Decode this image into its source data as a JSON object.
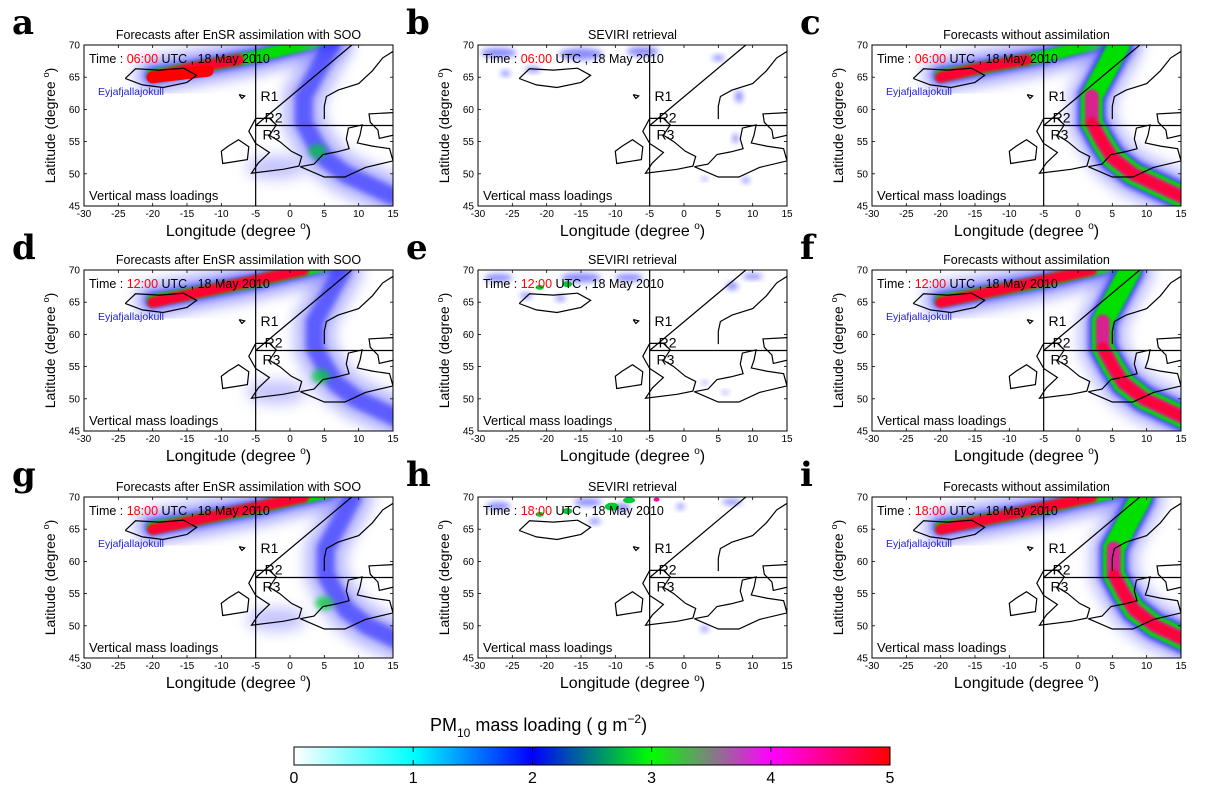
{
  "labels": {
    "x_axis": "Longitude (degree ",
    "y_axis": "Latitude (degree ",
    "degree_symbol": "o",
    "closing_paren": ")",
    "volcano": "Eyjafjallajokull",
    "vertical_mass": "Vertical mass loadings",
    "time_prefix": "Time : ",
    "time_suffix": "  UTC , 18 May 2010",
    "region_r1": "R1",
    "region_r2": "R2",
    "region_r3": "R3"
  },
  "axes": {
    "lon_range": [
      -30,
      15
    ],
    "lat_range": [
      45,
      70
    ],
    "lon_ticks": [
      "-30",
      "-25",
      "-20",
      "-15",
      "-10",
      "-5",
      "0",
      "5",
      "10",
      "15"
    ],
    "lat_ticks": [
      "45",
      "50",
      "55",
      "60",
      "65",
      "70"
    ]
  },
  "panels": [
    {
      "letter": "a",
      "title": "Forecasts after EnSR assimilation with SOO",
      "time": "06:00",
      "kind": "ensr"
    },
    {
      "letter": "b",
      "title": "SEVIRI retrieval",
      "time": "06:00",
      "kind": "seviri"
    },
    {
      "letter": "c",
      "title": "Forecasts without assimilation",
      "time": "06:00",
      "kind": "noassim"
    },
    {
      "letter": "d",
      "title": "Forecasts after EnSR assimilation with SOO",
      "time": "12:00",
      "kind": "ensr"
    },
    {
      "letter": "e",
      "title": "SEVIRI retrieval",
      "time": "12:00",
      "kind": "seviri"
    },
    {
      "letter": "f",
      "title": "Forecasts without assimilation",
      "time": "12:00",
      "kind": "noassim"
    },
    {
      "letter": "g",
      "title": "Forecasts after EnSR assimilation with SOO",
      "time": "18:00",
      "kind": "ensr"
    },
    {
      "letter": "h",
      "title": "SEVIRI retrieval",
      "time": "18:00",
      "kind": "seviri"
    },
    {
      "letter": "i",
      "title": "Forecasts without assimilation",
      "time": "18:00",
      "kind": "noassim"
    }
  ],
  "colorbar": {
    "title_prefix": "PM",
    "title_sub": "10",
    "title_mid": " mass loading ( g m",
    "title_sup": "−2",
    "title_end": ")",
    "ticks": [
      "0",
      "1",
      "2",
      "3",
      "4",
      "5"
    ],
    "range": [
      0,
      5
    ]
  },
  "colors": {
    "scale": [
      "#ffffff",
      "#00ffff",
      "#0000ff",
      "#00ff00",
      "#ff00ff",
      "#ff0000"
    ],
    "time_red": "#ff0000",
    "volcano_blue": "#1f1fd6"
  }
}
